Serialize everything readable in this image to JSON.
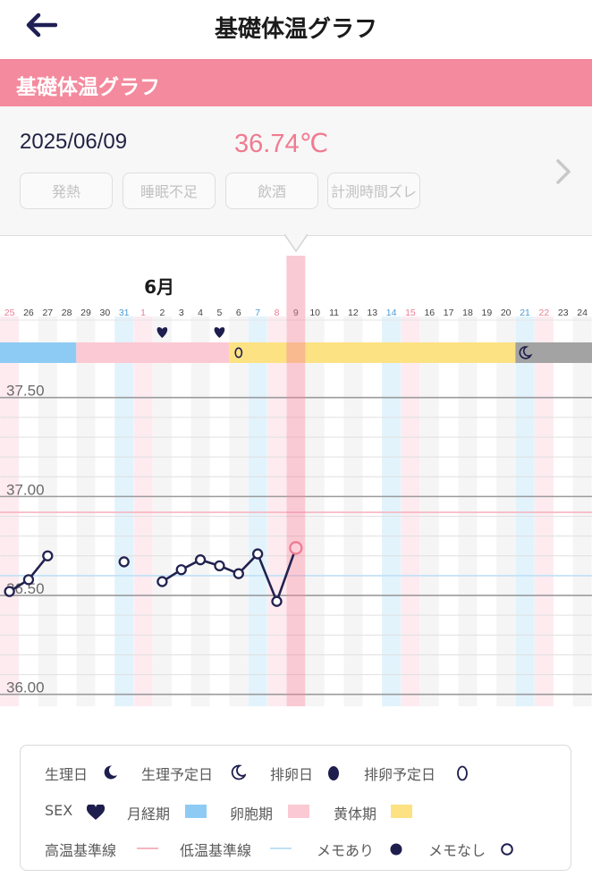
{
  "header": {
    "title": "基礎体温グラフ",
    "back_icon": "arrow-left-icon"
  },
  "section": {
    "title": "基礎体温グラフ"
  },
  "info": {
    "date": "2025/06/09",
    "temperature": "36.74℃",
    "tags": [
      "発熱",
      "睡眠不足",
      "飲酒",
      "計測時間ズレ"
    ],
    "next_icon": "chevron-right-icon"
  },
  "chart_data": {
    "type": "line",
    "month_label": "6月",
    "days": [
      "25",
      "26",
      "27",
      "28",
      "29",
      "30",
      "31",
      "1",
      "2",
      "3",
      "4",
      "5",
      "6",
      "7",
      "8",
      "9",
      "10",
      "11",
      "12",
      "13",
      "14",
      "15",
      "16",
      "17",
      "18",
      "19",
      "20",
      "21",
      "22",
      "23",
      "24"
    ],
    "day_kinds": [
      "sun",
      "",
      "",
      "",
      "",
      "",
      "sat",
      "sun",
      "",
      "",
      "",
      "",
      "",
      "sat",
      "sun",
      "selected",
      "",
      "",
      "",
      "",
      "sat",
      "sun",
      "",
      "",
      "",
      "",
      "",
      "sat",
      "sun",
      "",
      ""
    ],
    "selected_day": "9",
    "ylim": [
      35.94,
      37.58
    ],
    "y_ticks": [
      37.5,
      37.0,
      36.5,
      36.0
    ],
    "y_tick_labels": [
      "37.50",
      "37.00",
      "36.50",
      "36.00"
    ],
    "high_baseline": 36.92,
    "low_baseline": 36.6,
    "series": [
      {
        "values": [
          36.52,
          36.58,
          36.7,
          null,
          null,
          null,
          36.67,
          null,
          36.57,
          36.63,
          36.68,
          36.65,
          36.61,
          36.71,
          36.47,
          36.74,
          null,
          null,
          null,
          null,
          null,
          null,
          null,
          null,
          null,
          null,
          null,
          null,
          null,
          null,
          null
        ]
      }
    ],
    "sex_days": [
      "2",
      "5"
    ],
    "ovulation_predicted_day": "6",
    "period_predicted_day": "21",
    "phase_bands": [
      {
        "phase": "menstrual",
        "from": "25",
        "to": "28"
      },
      {
        "phase": "follicular",
        "from": "29",
        "to": "5"
      },
      {
        "phase": "luteal",
        "from": "6",
        "to": "20"
      },
      {
        "phase": "predicted",
        "from": "21",
        "to": "24"
      }
    ],
    "colors": {
      "menstrual": "#8ecbf4",
      "follicular": "#fbc9d4",
      "luteal": "#fde283",
      "predicted": "#a3a3a3",
      "line": "#222250",
      "selected": "#f48aa0",
      "high_line": "#f7b4bf",
      "low_line": "#bfe1f7"
    }
  },
  "legend": {
    "items": [
      {
        "label": "生理日",
        "icon": "moon-filled-icon"
      },
      {
        "label": "生理予定日",
        "icon": "moon-outline-icon"
      },
      {
        "label": "排卵日",
        "icon": "egg-filled-icon"
      },
      {
        "label": "排卵予定日",
        "icon": "egg-outline-icon"
      },
      {
        "label": "SEX",
        "icon": "heart-icon"
      },
      {
        "label": "月経期",
        "color": "#8ecbf4"
      },
      {
        "label": "卵胞期",
        "color": "#fbc9d4"
      },
      {
        "label": "黄体期",
        "color": "#fde283"
      },
      {
        "label": "高温基準線",
        "color": "#f7b4bf"
      },
      {
        "label": "低温基準線",
        "color": "#bfe1f7"
      },
      {
        "label": "メモあり",
        "icon": "dot-filled-icon"
      },
      {
        "label": "メモなし",
        "icon": "dot-outline-icon"
      }
    ]
  }
}
